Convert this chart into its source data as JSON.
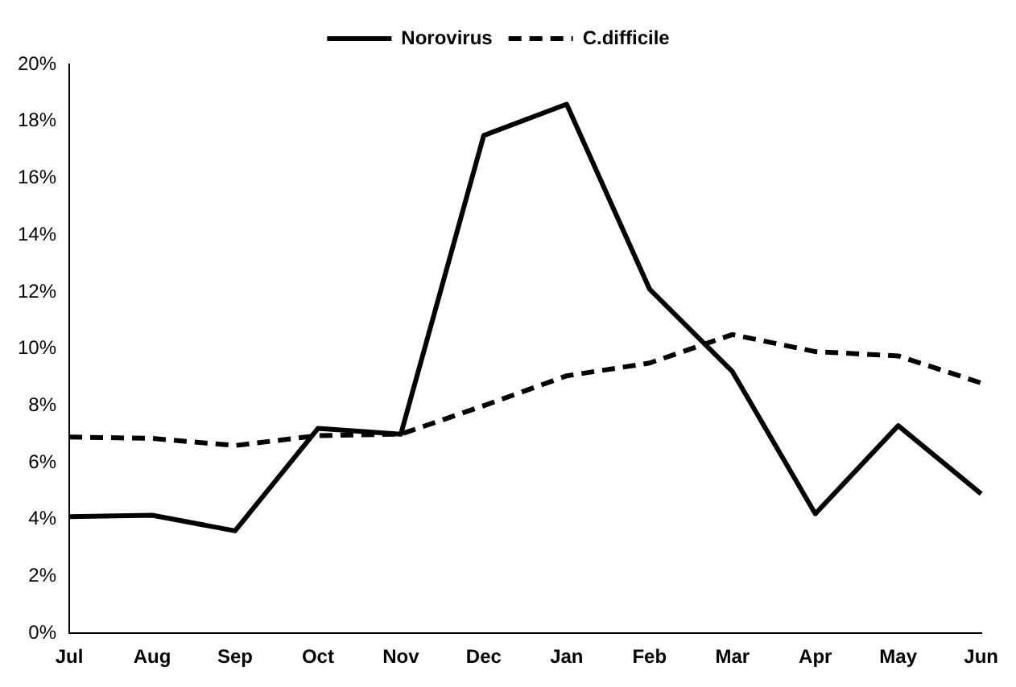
{
  "chart_data": {
    "type": "line",
    "categories": [
      "Jul",
      "Aug",
      "Sep",
      "Oct",
      "Nov",
      "Dec",
      "Jan",
      "Feb",
      "Mar",
      "Apr",
      "May",
      "Jun"
    ],
    "series": [
      {
        "name": "Norovirus",
        "color": "#000000",
        "line_style": "solid",
        "values": [
          4.1,
          4.15,
          3.6,
          7.2,
          7.0,
          17.5,
          18.6,
          12.1,
          9.2,
          4.2,
          7.3,
          4.9
        ]
      },
      {
        "name": "C.difficile",
        "color": "#000000",
        "line_style": "dashed",
        "values": [
          6.9,
          6.85,
          6.6,
          6.95,
          7.0,
          8.0,
          9.05,
          9.5,
          10.5,
          9.9,
          9.75,
          8.8
        ]
      }
    ],
    "ylim": [
      0,
      20
    ],
    "yticks": [
      {
        "value": 0,
        "label": "0%"
      },
      {
        "value": 2,
        "label": "2%"
      },
      {
        "value": 4,
        "label": "4%"
      },
      {
        "value": 6,
        "label": "6%"
      },
      {
        "value": 8,
        "label": "8%"
      },
      {
        "value": 10,
        "label": "10%"
      },
      {
        "value": 12,
        "label": "12%"
      },
      {
        "value": 14,
        "label": "14%"
      },
      {
        "value": 16,
        "label": "16%"
      },
      {
        "value": 18,
        "label": "18%"
      },
      {
        "value": 20,
        "label": "20%"
      }
    ],
    "grid": false,
    "legend": "top",
    "marker": "none"
  }
}
